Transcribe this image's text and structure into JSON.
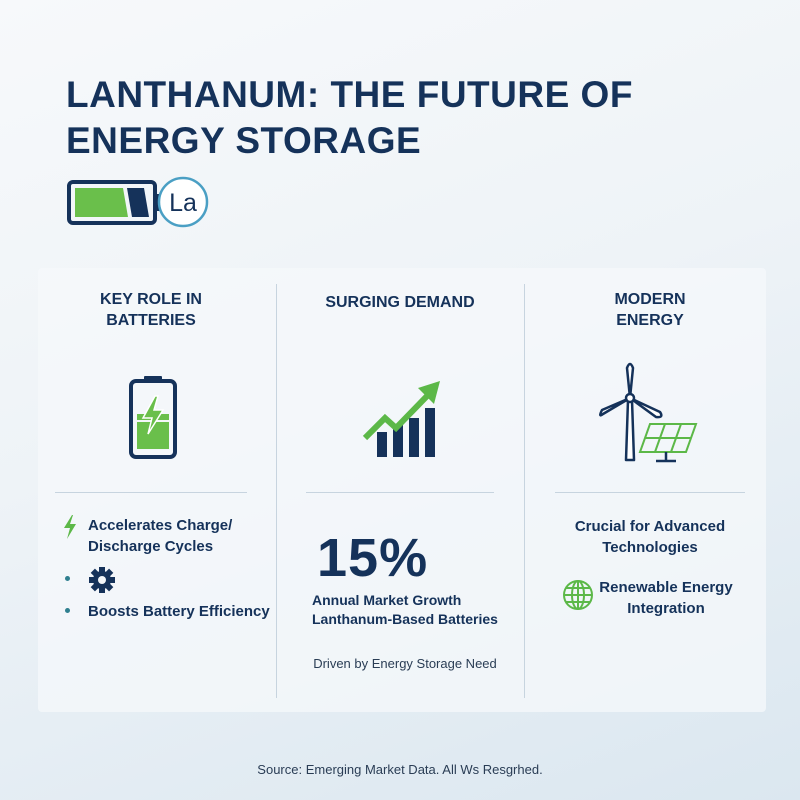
{
  "title": {
    "line1": "LANTHANUM: THE FUTURE OF",
    "line2": "ENERGY STORAGE"
  },
  "brand": {
    "icon": "battery-icon",
    "element_symbol": "La"
  },
  "columns": [
    {
      "heading_line1": "KEY ROLE IN",
      "heading_line2": "BATTERIES",
      "icon": "charging-battery-icon",
      "features": [
        {
          "icon": "lightning-bolt-icon",
          "line1": "Accelerates Charge/",
          "line2": "Discharge Cycles"
        },
        {
          "icon": "gear-icon",
          "line1": ""
        },
        {
          "icon": "bullet-dot",
          "line1": "Boosts Battery Efficiency"
        }
      ]
    },
    {
      "heading": "SURGING DEMAND",
      "icon": "growth-chart-icon",
      "stat_value": "15%",
      "stat_label_line1": "Annual Market Growth",
      "stat_label_line2": "Lanthanum-Based Batteries",
      "note": "Driven by Energy Storage Need"
    },
    {
      "heading_line1": "MODERN",
      "heading_line2": "ENERGY",
      "icon": "wind-turbine-solar-panel-icon",
      "text_line1": "Crucial for Advanced",
      "text_line2": "Technologies",
      "feature_icon": "globe-icon",
      "feature_line1": "Renewable Energy",
      "feature_line2": "Integration"
    }
  ],
  "source": "Source: Emerging Market Data. All Ws Resgrhed.",
  "colors": {
    "navy": "#15325a",
    "green": "#5cb848",
    "teal": "#2f7f8f",
    "ring_blue": "#4a9fc4"
  }
}
